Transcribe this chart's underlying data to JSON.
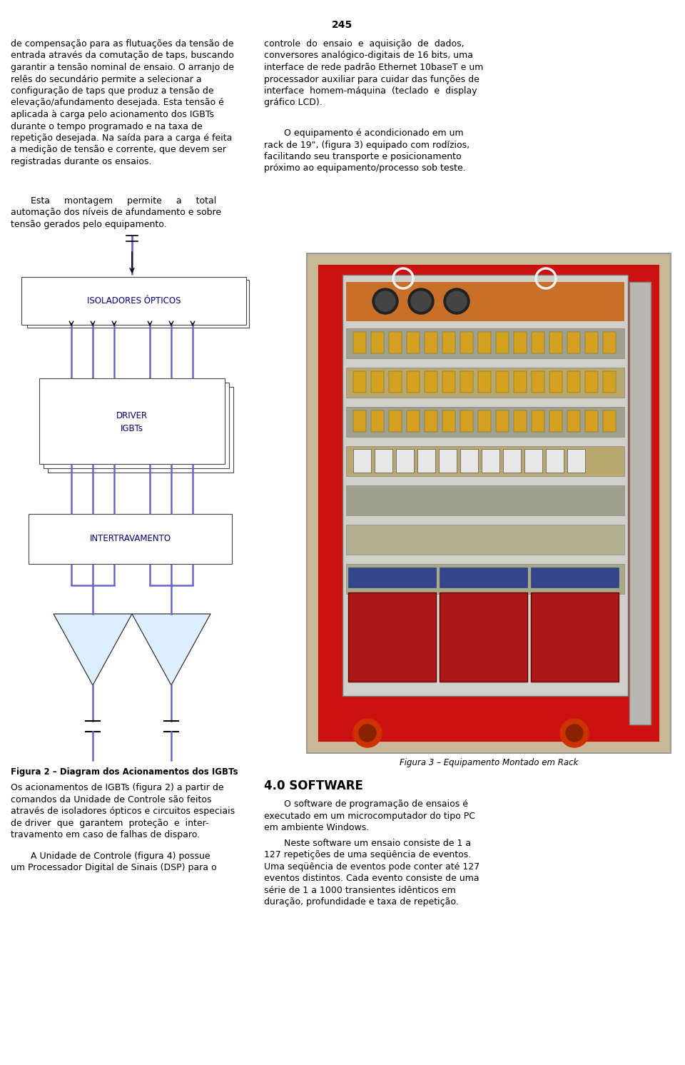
{
  "page_number": "245",
  "bg_color": "#ffffff",
  "text_color": "#000000",
  "left_col_para1": "de compensação para as flutuações da tensão de\nentrada através da comutação de taps, buscando\ngarantir a tensão nominal de ensaio. O arranjo de\nrelês do secundário permite a selecionar a\nconfiguração de taps que produz a tensão de\nelevação/afundamento desejada. Esta tensão é\naplicada à carga pelo acionamento dos IGBTs\ndurante o tempo programado e na taxa de\nrepetição desejada. Na saída para a carga é feita\na medição de tensão e corrente, que devem ser\nregistradas durante os ensaios.",
  "left_col_para2": "       Esta     montagem     permite     a     total\nautomação dos níveis de afundamento e sobre\ntensão gerados pelo equipamento.",
  "right_col_para1": "controle  do  ensaio  e  aquisição  de  dados,\nconversores analógico-digitais de 16 bits, uma\ninterface de rede padrão Ethernet 10baseT e um\nprocessador auxiliar para cuidar das funções de\ninterface  homem-máquina  (teclado  e  display\ngráfico LCD).",
  "right_col_para2_indent": "       O equipamento é acondicionado em um\nrack de 19\", (figura 3) equipado com rodízios,\nfacilitando seu transporte e posicionamento\npróximo ao equipamento/processo sob teste.",
  "fig2_caption": "Figura 2 – Diagram dos Acionamentos dos IGBTs",
  "left_col_para3": "Os acionamentos de IGBTs (figura 2) a partir de\ncomandos da Unidade de Controle são feitos\natravés de isoladores ópticos e circuitos especiais\nde driver  que  garantem  proteção  e  inter-\ntravamento em caso de falhas de disparo.",
  "left_col_para4": "       A Unidade de Controle (figura 4) possue\num Processador Digital de Sinais (DSP) para o",
  "fig3_caption": "Figura 3 – Equipamento Montado em Rack",
  "section_title": "4.0 SOFTWARE",
  "right_col_para3_indent": "       O software de programação de ensaios é\nexecutado em um microcomputador do tipo PC\nem ambiente Windows.",
  "right_col_para4_indent": "       Neste software um ensaio consiste de 1 a\n127 repetições de uma seqüência de eventos.\nUma seqüência de eventos pode conter até 127\neventos distintos. Cada evento consiste de uma\nsérie de 1 a 1000 transientes idênticos em\nduração, profundidade e taxa de repetição.",
  "line_color": "#6666cc",
  "box_edge_color": "#444444",
  "tri_face_color": "#ddeeff",
  "tri_edge_color": "#333333"
}
